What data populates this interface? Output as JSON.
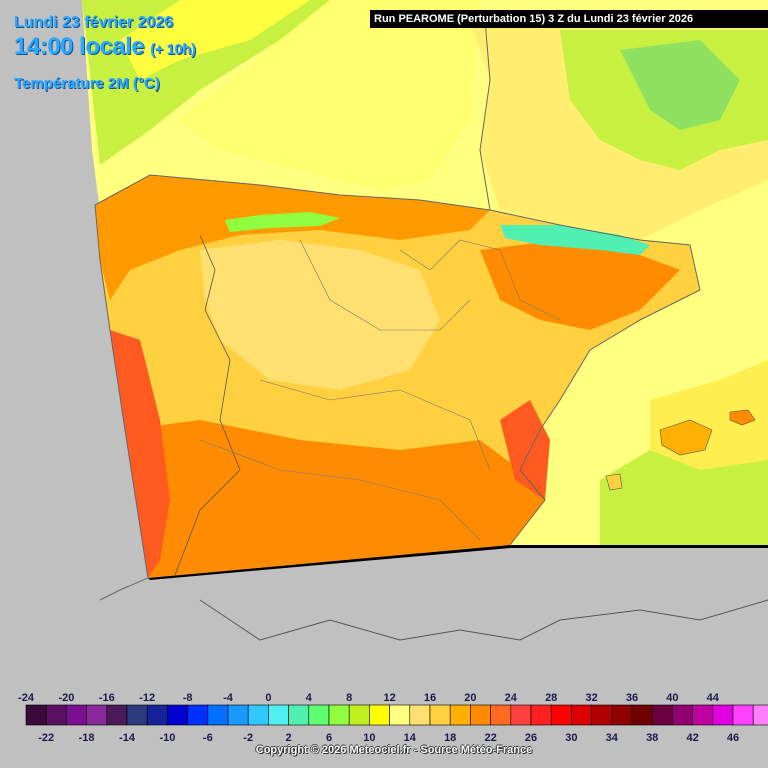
{
  "header": {
    "date": "Lundi 23 février 2026",
    "local_time": "14:00 locale",
    "lead": "(+ 10h)",
    "variable": "Température 2M (°C)",
    "run_info": "Run PEAROME (Perturbation 15) 3 Z du Lundi 23 février 2026"
  },
  "legend": {
    "top_labels": [
      "-24",
      "-20",
      "-16",
      "-12",
      "-8",
      "-4",
      "0",
      "4",
      "8",
      "12",
      "16",
      "20",
      "24",
      "28",
      "32",
      "36",
      "40",
      "44"
    ],
    "bottom_labels": [
      "-22",
      "-18",
      "-14",
      "-10",
      "-6",
      "-2",
      "2",
      "6",
      "10",
      "14",
      "18",
      "22",
      "26",
      "30",
      "34",
      "38",
      "42",
      "46"
    ],
    "colors": [
      "#3a0a3a",
      "#5a1060",
      "#7a0f8f",
      "#8a2a9a",
      "#4a1a5a",
      "#2a3a7a",
      "#14239a",
      "#0000d0",
      "#0030ff",
      "#0070ff",
      "#1a9aff",
      "#30c8ff",
      "#50f0f0",
      "#50f0b0",
      "#60ff70",
      "#90ff40",
      "#c0f020",
      "#ffff00",
      "#ffff80",
      "#ffe070",
      "#ffd040",
      "#ffb000",
      "#ff8c00",
      "#ff6a20",
      "#ff4040",
      "#ff2020",
      "#ff0000",
      "#dd0000",
      "#b00000",
      "#900000",
      "#700000",
      "#6a0040",
      "#900070",
      "#c000a0",
      "#e000e0",
      "#ff40ff",
      "#ff80ff"
    ]
  },
  "copyright": "Copyright © 2026 Meteociel.fr - Source Météo-France"
}
